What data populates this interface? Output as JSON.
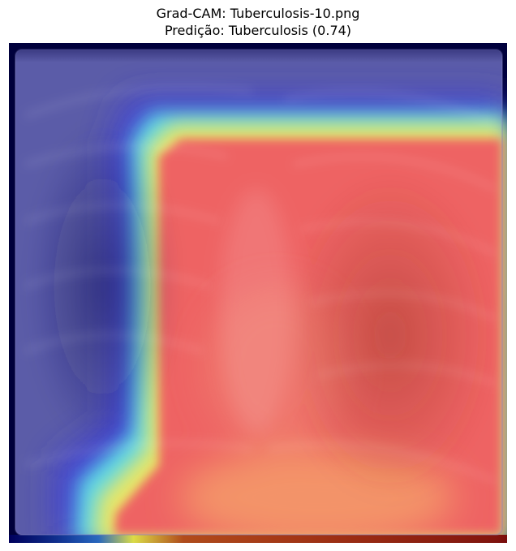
{
  "figure": {
    "title_line1": "Grad-CAM: Tuberculosis-10.png",
    "title_line2": "Predição: Tuberculosis (0.74)"
  },
  "image": {
    "subject": "chest-xray-gradcam-overlay",
    "colormap": "jet",
    "overlay_colors": {
      "cold": "#3c3ca8",
      "cyan": "#6fe6e6",
      "yellow": "#f0e060",
      "hot": "#f06a6a",
      "orange": "#f39a6a"
    }
  }
}
